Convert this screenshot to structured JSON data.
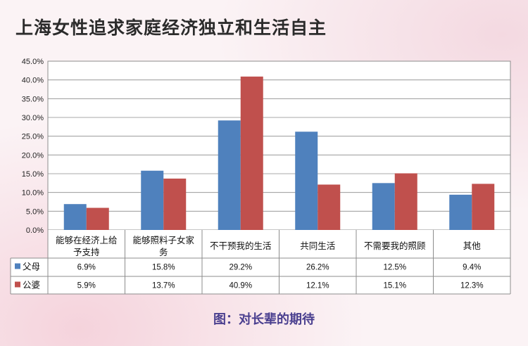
{
  "title": "上海女性追求家庭经济独立和生活自主",
  "caption": "图：对长辈的期待",
  "colors": {
    "series1": "#4f81bd",
    "series2": "#c0504d"
  },
  "chart_data": {
    "type": "bar",
    "title": "上海女性追求家庭经济独立和生活自主",
    "categories": [
      "能够在经济上给予支持",
      "能够照料子女家务",
      "不干预我的生活",
      "共同生活",
      "不需要我的照顾",
      "其他"
    ],
    "category_label_lines": [
      [
        "能够在经济上给",
        "予支持"
      ],
      [
        "能够照料子女家",
        "务"
      ],
      [
        "不干预我的生活"
      ],
      [
        "共同生活"
      ],
      [
        "不需要我的照顾"
      ],
      [
        "其他"
      ]
    ],
    "series": [
      {
        "name": "父母",
        "values": [
          6.9,
          15.8,
          29.2,
          26.2,
          12.5,
          9.4
        ],
        "labels": [
          "6.9%",
          "15.8%",
          "29.2%",
          "26.2%",
          "12.5%",
          "9.4%"
        ]
      },
      {
        "name": "公婆",
        "values": [
          5.9,
          13.7,
          40.9,
          12.1,
          15.1,
          12.3
        ],
        "labels": [
          "5.9%",
          "13.7%",
          "40.9%",
          "12.1%",
          "15.1%",
          "12.3%"
        ]
      }
    ],
    "ylim": [
      0,
      45
    ],
    "y_ticks": [
      "0.0%",
      "5.0%",
      "10.0%",
      "15.0%",
      "20.0%",
      "25.0%",
      "30.0%",
      "35.0%",
      "40.0%",
      "45.0%"
    ],
    "grid": true,
    "legend": "data-table"
  }
}
